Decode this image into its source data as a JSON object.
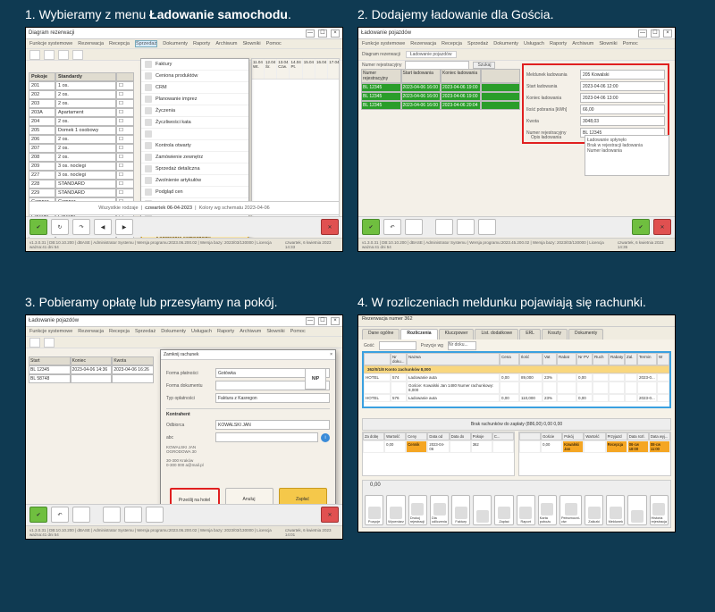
{
  "background_color": "#0f3a52",
  "steps": {
    "s1": {
      "caption_pre": "1. Wybieramy z menu ",
      "caption_bold": "Ładowanie samochodu",
      "caption_post": ".",
      "window_title": "Diagram rezerwacji",
      "menubar": [
        "Funkcje systemowe",
        "Rezerwacja",
        "Recepcja",
        "Sprzedaż",
        "Dokumenty",
        "Raporty",
        "Archiwum",
        "Słowniki",
        "Pomoc"
      ],
      "toolbar_right": [
        "Informacje",
        "Szukanie",
        "Parking",
        "Info VAT"
      ],
      "rooms_header": [
        "Pokoje",
        "Standardy",
        ""
      ],
      "rooms": [
        {
          "no": "201",
          "std": "1 os.",
          "style": "row-cyan"
        },
        {
          "no": "202",
          "std": "2 os.",
          "style": "row-cyan"
        },
        {
          "no": "203",
          "std": "2 os.",
          "style": "row-cyan"
        },
        {
          "no": "203A",
          "std": "Apartament",
          "style": "row-dorange"
        },
        {
          "no": "204",
          "std": "2 os.",
          "style": "row-cyan"
        },
        {
          "no": "205",
          "std": "Domek 1 osobowy",
          "style": ""
        },
        {
          "no": "206",
          "std": "2 os.",
          "style": "row-cyan"
        },
        {
          "no": "207",
          "std": "2 os.",
          "style": "row-cyan"
        },
        {
          "no": "208",
          "std": "2 os.",
          "style": "row-cyan"
        },
        {
          "no": "209",
          "std": "3 os. noclegi",
          "style": "row-pink"
        },
        {
          "no": "227",
          "std": "3 os. noclegi",
          "style": "row-pink"
        },
        {
          "no": "228",
          "std": "STANDARD",
          "style": "row-red"
        },
        {
          "no": "229",
          "std": "STANDARD",
          "style": "row-purple"
        },
        {
          "no": "Camper 1",
          "std": "Camper",
          "style": "row-green"
        },
        {
          "no": "Camper 2",
          "std": "Camper",
          "style": "row-green"
        },
        {
          "no": "Camper 3",
          "std": "Camper",
          "style": "row-green"
        },
        {
          "no": "Camper 4",
          "std": "Camper",
          "style": "row-green"
        },
        {
          "no": "205",
          "std": "",
          "style": ""
        }
      ],
      "dropdown": [
        "Faktury",
        "Ceniona produktów",
        "CRM",
        "Planowanie imprez",
        "Życzenia",
        "Życzliwości kata",
        "",
        "Kontrola otwarty",
        "Zamówienie zewnętrz",
        "Sprzedaż detaliczna",
        "Zwolnienie artykułów",
        "Podgląd cen",
        "Kursy",
        "",
        "Raporty programów fiskalnych"
      ],
      "dropdown_highlight": "Ładowanie samochodu elektrycznego",
      "cal_header": [
        "11.04 Wt.",
        "12.04 Śr.",
        "13.04 Czw.",
        "14.04 Pt.",
        "15.04",
        "16.04",
        "17.04",
        "18.04"
      ],
      "cal_sub": [
        "AM",
        "PM",
        "AM",
        "PM",
        "AM",
        "PM",
        "AM",
        "PM"
      ],
      "footer_center": "czwartek 06-04-2023",
      "footer_left": "Wszystkie rodzaje",
      "footer_right": "Kolory wg schematu   2023-04-06",
      "bottom_tabs": [
        "Start",
        "Kalendarz",
        "Raporty"
      ],
      "status_left": "v1.3.0.31 | DB:10.10.200 | dBASE | Administrator Systemu | Wersja programu:2023.06.200.02 | Wersja bazy: 2023/03/130000 | Licencja ważna:41 dni 54",
      "status_right": "czwartek, 6 kwietnia 2023  14:33"
    },
    "s2": {
      "caption": "2. Dodajemy ładowanie dla Gościa.",
      "window_title": "Ładowanie pojazdów",
      "menubar": [
        "Funkcje systemowe",
        "Rezerwacja",
        "Recepcja",
        "Sprzedaż",
        "Dokumenty",
        "Usługach",
        "Raporty",
        "Archiwum",
        "Słowniki",
        "Pomoc"
      ],
      "tabrow": [
        "Diagram rezerwacji",
        "Ładowanie pojazdów"
      ],
      "filter_label": "Numer rejestracyjny",
      "filter_btn": "Szukaj",
      "thead": [
        "Numer rejestracyjny",
        "Start ładowania",
        "Koniec ładowania",
        ""
      ],
      "rows": [
        [
          "BL 12345",
          "2023-04-06 16:00",
          "2023-04-06 19:00",
          ""
        ],
        [
          "BL 12345",
          "2023-04-06 16:00",
          "2023-04-06 19:00",
          ""
        ],
        [
          "BL 12345",
          "2023-04-06 16:00",
          "2023-04-06 20:04",
          ""
        ]
      ],
      "form": [
        {
          "l": "Meldunek ładowania",
          "v": "205 Kowalski"
        },
        {
          "l": "Start ładowania",
          "v": "2023-04-06 12:00"
        },
        {
          "l": "Koniec ładowania",
          "v": "2023-04-06 13:00"
        },
        {
          "l": "Ilość pobrania [kWh]",
          "v": "66,00"
        },
        {
          "l": "Kwota",
          "v": "3048,03"
        },
        {
          "l": "Numer rejestracyjny",
          "v": "BL 12345"
        }
      ],
      "note_label": "Opis ładowania",
      "note_text": "Ładowanie spłynęło\nBrak w rejestracji ładowania\nNumer ładowania",
      "status_left": "v1.3.0.31 | DB:10.10.200 | dBASE | Administrator Systemu | Wersja programu:2023.45.200.02 | Wersja bazy: 2023/03/130000 | Licencja ważna:41 dni 54",
      "status_right": "czwartek, 6 kwietnia 2023  14:35"
    },
    "s3": {
      "caption": "3. Pobieramy opłatę lub przesyłamy na pokój.",
      "window_title": "Ładowanie pojazdów",
      "thead": [
        "Start",
        "Koniec",
        "Kwota"
      ],
      "rows": [
        [
          "BL 12345",
          "2023-04-06 14:36",
          "2023-04-06 16:26"
        ],
        [
          "BL 58748",
          "",
          "",
          ""
        ]
      ],
      "dialog_title": "Zamknij rachunek",
      "right_label": "Meldunek hotelowy",
      "right_sub": "Start ładowania",
      "form": [
        {
          "l": "Forma płatności",
          "v": "Gotówka"
        },
        {
          "l": "Forma dokumentu",
          "v": ""
        },
        {
          "l": "Typ opłatności",
          "v": "Faktura z Kasregon"
        }
      ],
      "nip_btn": "NIP",
      "kontrahent": "Kontrahent",
      "odbiorca_l": "Odbiorca",
      "odbiorca_v": "KOWALSKI JAN",
      "abc": "abc",
      "addr": "KOWALSKI JAN\nOGRODOWA 30\n\n30-300 Kraków\n0-300 000 a@mail.pl",
      "btns": [
        "Prześlij na hotel",
        "Anuluj",
        "Zapłać"
      ],
      "status_left": "v1.3.0.31 | DB:10.10.200 | dBASE | Administrator Systemu | Wersja programu:2023.06.200.02 | Wersja bazy: 2023/03/130000 | Licencja ważna:41 dni 54",
      "status_right": "czwartek, 6 kwietnia 2023  14:01"
    },
    "s4": {
      "caption": "4. W rozliczeniach meldunku pojawiają się rachunki.",
      "window_title": "Rezerwacja numer 362",
      "tabs": [
        "Dane ogólne",
        "Rozliczenia",
        "Kluczpower",
        "List. dodatkowe",
        "ERL",
        "Koszty",
        "Dokumenty"
      ],
      "sub": "Gość",
      "filter": [
        "Pozycje wg",
        "Nr doku...",
        "Nazwa"
      ],
      "grid_head": [
        "",
        "Nr doku...",
        "Nazwa",
        "Cena",
        "Ilość",
        "Vat",
        "Rabat",
        "Nr PV",
        "Ruch",
        "Rabaty",
        "Zal.",
        "Termin",
        "W"
      ],
      "grid_group": "362/0/1/8  Konto zachunków  8,000",
      "grid_rows": [
        [
          "HOTEL",
          "574",
          "Ładowanie auta",
          "0,00",
          "89,000",
          "23%",
          "",
          "0,00",
          "",
          "",
          "",
          "2023-0...",
          ""
        ],
        [
          "",
          "",
          "Goście: Kowalski Jan 1480  Numer rachunkowy: 8,000",
          "",
          "",
          "",
          "",
          "",
          "",
          "",
          "",
          "",
          ""
        ],
        [
          "HOTEL",
          "576",
          "Ładowanie auta",
          "0,00",
          "110,000",
          "23%",
          "",
          "0,00",
          "",
          "",
          "",
          "2023-0...",
          ""
        ]
      ],
      "mid_text": "Brak rachunków do zapłaty (886,00)         0,00     0,00",
      "lpane_head": [
        "Za dobę",
        "Wartość",
        "Ceny",
        "Data od",
        "Data do",
        "Pokoje",
        "C..."
      ],
      "lpane_row": [
        "",
        "0,00",
        "Cennik",
        "2023-04-06",
        "",
        "362",
        ""
      ],
      "rpane_head": [
        "",
        "Goście",
        "Pokój",
        "Wartość",
        "Przyjazd",
        "Data rozl.",
        "Data wyj..."
      ],
      "rpane_row": [
        "",
        "0,00",
        "Kowalski Jan",
        "",
        "Recepcja",
        "06-cw 18:00",
        "08-cw 11:00"
      ],
      "zero": "0,00",
      "buttons": [
        "Pozycje",
        "Wyceniarz",
        "Drukuj rejestracji",
        "Dla odliczenia",
        "Faktury",
        "",
        "Zapłać",
        "Raport",
        "Karta pobożu",
        "Pełnomocni-ctw",
        "Zaliczki",
        "Meldunek",
        "",
        "Historia rejestracja"
      ]
    }
  }
}
